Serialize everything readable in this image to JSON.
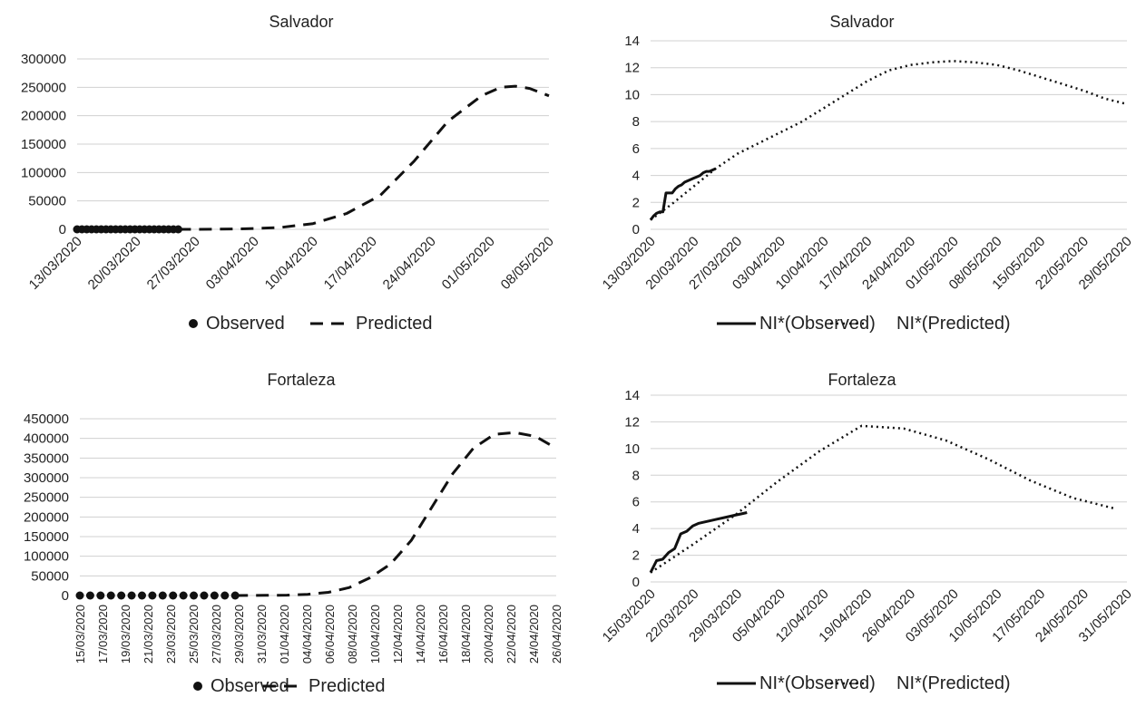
{
  "chart_data": [
    {
      "id": "salvador-counts",
      "type": "line",
      "title": "Salvador",
      "xlabel": "",
      "ylabel": "",
      "ylim": [
        0,
        300000
      ],
      "yticks": [
        0,
        50000,
        100000,
        150000,
        200000,
        250000,
        300000
      ],
      "grid": true,
      "legend_position": "bottom",
      "x_labels": [
        "13/03/2020",
        "20/03/2020",
        "27/03/2020",
        "03/04/2020",
        "10/04/2020",
        "17/04/2020",
        "24/04/2020",
        "01/05/2020",
        "08/05/2020"
      ],
      "series": [
        {
          "name": "Observed",
          "style": "markers",
          "color": "#111111",
          "x": [
            0,
            1,
            2,
            3,
            4,
            5,
            6,
            7,
            8,
            9,
            10,
            11,
            12,
            13,
            14,
            15,
            16,
            17,
            18,
            19,
            20,
            21
          ],
          "y": [
            0,
            0,
            0,
            0,
            0,
            0,
            0,
            0,
            0,
            0,
            0,
            0,
            0,
            0,
            0,
            0,
            0,
            0,
            0,
            0,
            0,
            0
          ]
        },
        {
          "name": "Predicted",
          "style": "dashed",
          "color": "#111111",
          "x": [
            21,
            28,
            35,
            42,
            49,
            56,
            63,
            70,
            77,
            84,
            88,
            91,
            94,
            98
          ],
          "y": [
            0,
            200,
            1000,
            3000,
            10000,
            28000,
            60000,
            120000,
            190000,
            235000,
            250000,
            252000,
            248000,
            235000
          ]
        }
      ]
    },
    {
      "id": "salvador-ni",
      "type": "line",
      "title": "Salvador",
      "xlabel": "",
      "ylabel": "",
      "ylim": [
        0,
        14
      ],
      "yticks": [
        0,
        2,
        4,
        6,
        8,
        10,
        12,
        14
      ],
      "grid": true,
      "legend_position": "bottom",
      "x_labels": [
        "13/03/2020",
        "20/03/2020",
        "27/03/2020",
        "03/04/2020",
        "10/04/2020",
        "17/04/2020",
        "24/04/2020",
        "01/05/2020",
        "08/05/2020",
        "15/05/2020",
        "22/05/2020",
        "29/05/2020"
      ],
      "series": [
        {
          "name": "NI*(Observed)",
          "style": "solid",
          "color": "#111111",
          "x": [
            0,
            1,
            2,
            3,
            4,
            5,
            6,
            7,
            8,
            9,
            10,
            11,
            12,
            13,
            14,
            15,
            16,
            17,
            18,
            19,
            20,
            21
          ],
          "y": [
            0.7,
            1.0,
            1.2,
            1.3,
            1.3,
            2.7,
            2.7,
            2.7,
            3.0,
            3.2,
            3.3,
            3.5,
            3.6,
            3.7,
            3.8,
            3.9,
            4.0,
            4.2,
            4.3,
            4.3,
            4.4,
            4.5
          ]
        },
        {
          "name": "NI*(Predicted)",
          "style": "dotted",
          "color": "#111111",
          "x": [
            0,
            7,
            14,
            21,
            28,
            35,
            42,
            49,
            56,
            63,
            70,
            77,
            84,
            91,
            98,
            105,
            112,
            119,
            126,
            133,
            140,
            147,
            154
          ],
          "y": [
            0.7,
            1.9,
            3.2,
            4.5,
            5.6,
            6.4,
            7.2,
            8.0,
            9.0,
            10.0,
            11.0,
            11.8,
            12.2,
            12.4,
            12.5,
            12.4,
            12.2,
            11.8,
            11.3,
            10.8,
            10.3,
            9.7,
            9.3
          ]
        }
      ]
    },
    {
      "id": "fortaleza-counts",
      "type": "line",
      "title": "Fortaleza",
      "xlabel": "",
      "ylabel": "",
      "ylim": [
        0,
        450000
      ],
      "yticks": [
        0,
        50000,
        100000,
        150000,
        200000,
        250000,
        300000,
        350000,
        400000,
        450000
      ],
      "grid": true,
      "legend_position": "bottom",
      "x_labels": [
        "15/03/2020",
        "17/03/2020",
        "19/03/2020",
        "21/03/2020",
        "23/03/2020",
        "25/03/2020",
        "27/03/2020",
        "29/03/2020",
        "31/03/2020",
        "01/04/2020",
        "04/04/2020",
        "06/04/2020",
        "08/04/2020",
        "10/04/2020",
        "12/04/2020",
        "14/04/2020",
        "16/04/2020",
        "18/04/2020",
        "20/04/2020",
        "22/04/2020",
        "24/04/2020",
        "26/04/2020"
      ],
      "series": [
        {
          "name": "Observed",
          "style": "markers",
          "color": "#111111",
          "x": [
            0,
            1,
            2,
            3,
            4,
            5,
            6,
            7,
            8,
            9,
            10,
            11,
            12,
            13,
            14,
            15
          ],
          "y": [
            0,
            0,
            0,
            0,
            0,
            0,
            0,
            0,
            0,
            0,
            0,
            0,
            0,
            0,
            0,
            0
          ]
        },
        {
          "name": "Predicted",
          "style": "dashed",
          "color": "#111111",
          "x": [
            15,
            18,
            20,
            22,
            24,
            26,
            28,
            30,
            32,
            34,
            36,
            38,
            40,
            42,
            44,
            46
          ],
          "y": [
            0,
            500,
            1000,
            3000,
            8000,
            20000,
            45000,
            80000,
            140000,
            225000,
            310000,
            375000,
            410000,
            415000,
            405000,
            375000
          ]
        }
      ]
    },
    {
      "id": "fortaleza-ni",
      "type": "line",
      "title": "Fortaleza",
      "xlabel": "",
      "ylabel": "",
      "ylim": [
        0,
        14
      ],
      "yticks": [
        0,
        2,
        4,
        6,
        8,
        10,
        12,
        14
      ],
      "grid": true,
      "legend_position": "bottom",
      "x_labels": [
        "15/03/2020",
        "22/03/2020",
        "29/03/2020",
        "05/04/2020",
        "12/04/2020",
        "19/04/2020",
        "26/04/2020",
        "03/05/2020",
        "10/05/2020",
        "17/05/2020",
        "24/05/2020",
        "31/05/2020"
      ],
      "series": [
        {
          "name": "NI*(Observed)",
          "style": "solid",
          "color": "#111111",
          "x": [
            0,
            1,
            2,
            3,
            4,
            5,
            6,
            7,
            8,
            9,
            10,
            11,
            12,
            13,
            14,
            15,
            16
          ],
          "y": [
            0.7,
            1.6,
            1.7,
            2.2,
            2.5,
            3.6,
            3.8,
            4.2,
            4.4,
            4.5,
            4.6,
            4.7,
            4.8,
            4.9,
            5.0,
            5.1,
            5.2
          ]
        },
        {
          "name": "NI*(Predicted)",
          "style": "dotted",
          "color": "#111111",
          "x": [
            0,
            7,
            14,
            21,
            28,
            35,
            42,
            49,
            56,
            63,
            70,
            77
          ],
          "y": [
            0.7,
            2.8,
            5.0,
            7.5,
            9.8,
            11.7,
            11.5,
            10.6,
            9.2,
            7.6,
            6.3,
            5.5
          ]
        }
      ]
    }
  ]
}
